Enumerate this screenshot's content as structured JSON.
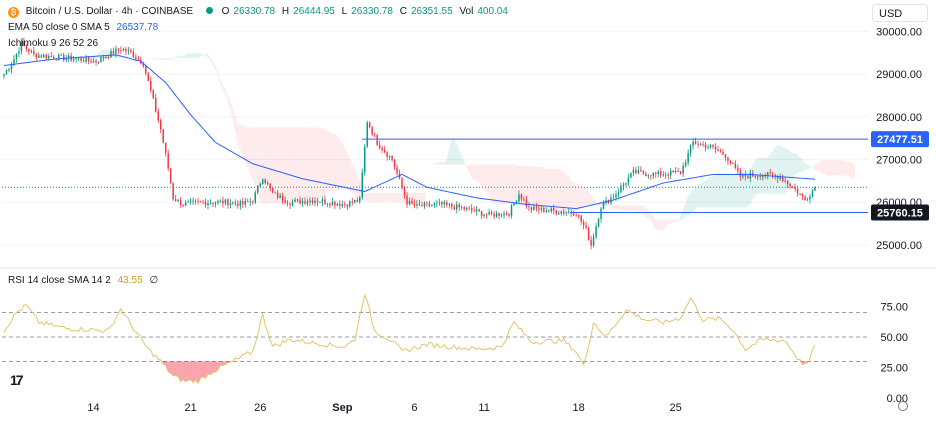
{
  "legend": {
    "symbol": "Bitcoin / U.S. Dollar · 4h · COINBASE",
    "o_label": "O",
    "o": "26330.78",
    "h_label": "H",
    "h": "26444.95",
    "l_label": "L",
    "l": "26330.78",
    "c_label": "C",
    "c": "26351.55",
    "vol_label": "Vol",
    "vol": "400.04",
    "ema_label": "EMA 50 close 0 SMA 5",
    "ema_value": "26537.78",
    "ichimoku_label": "Ichimoku 9 26 52 26",
    "rsi_label": "RSI 14 close SMA 14 2",
    "rsi_value": "43.55",
    "rsi_extra": "∅"
  },
  "currency": "USD",
  "colors": {
    "up": "#089981",
    "down": "#f23645",
    "ema": "#2962ff",
    "rsi": "#e2c56b",
    "level": "#2962ff"
  },
  "chart_data": [
    {
      "type": "candlestick",
      "title": "Bitcoin / U.S. Dollar · 4h · COINBASE",
      "ylim": [
        24600,
        30500
      ],
      "y_ticks": [
        "30000.00",
        "29000.00",
        "28000.00",
        "27000.00",
        "26000.00",
        "25000.00"
      ],
      "x_ticks": [
        "14",
        "21",
        "26",
        "Sep",
        "6",
        "11",
        "18",
        "25"
      ],
      "price_levels": [
        {
          "label": "27477.51",
          "value": 27477.51
        },
        {
          "label": "25760.15",
          "value": 25760.15
        }
      ],
      "series_anchors": [
        [
          0,
          29000
        ],
        [
          3,
          29250
        ],
        [
          7,
          29700
        ],
        [
          12,
          29450
        ],
        [
          20,
          29400
        ],
        [
          30,
          29350
        ],
        [
          37,
          29300
        ],
        [
          42,
          29450
        ],
        [
          47,
          29600
        ],
        [
          51,
          29500
        ],
        [
          56,
          29250
        ],
        [
          59,
          28600
        ],
        [
          63,
          27700
        ],
        [
          66,
          26800
        ],
        [
          68,
          26100
        ],
        [
          72,
          25950
        ],
        [
          80,
          26000
        ],
        [
          90,
          26000
        ],
        [
          96,
          25950
        ],
        [
          100,
          26050
        ],
        [
          104,
          26600
        ],
        [
          108,
          26200
        ],
        [
          115,
          26000
        ],
        [
          125,
          26050
        ],
        [
          137,
          25950
        ],
        [
          143,
          26050
        ],
        [
          146,
          27900
        ],
        [
          150,
          27400
        ],
        [
          156,
          27000
        ],
        [
          159,
          26500
        ],
        [
          162,
          26000
        ],
        [
          166,
          25900
        ],
        [
          175,
          25950
        ],
        [
          185,
          25850
        ],
        [
          195,
          25700
        ],
        [
          203,
          25750
        ],
        [
          207,
          26200
        ],
        [
          211,
          25850
        ],
        [
          220,
          25800
        ],
        [
          230,
          25750
        ],
        [
          234,
          25350
        ],
        [
          236,
          25000
        ],
        [
          240,
          25900
        ],
        [
          246,
          26200
        ],
        [
          253,
          26700
        ],
        [
          262,
          26650
        ],
        [
          272,
          26700
        ],
        [
          277,
          27400
        ],
        [
          284,
          27300
        ],
        [
          290,
          27100
        ],
        [
          296,
          26600
        ],
        [
          304,
          26650
        ],
        [
          312,
          26600
        ],
        [
          318,
          26300
        ],
        [
          322,
          26050
        ],
        [
          326,
          26351.55
        ]
      ],
      "ema_anchors": [
        [
          0,
          29200
        ],
        [
          20,
          29350
        ],
        [
          45,
          29450
        ],
        [
          55,
          29300
        ],
        [
          65,
          28800
        ],
        [
          75,
          28050
        ],
        [
          85,
          27400
        ],
        [
          100,
          26900
        ],
        [
          120,
          26550
        ],
        [
          145,
          26250
        ],
        [
          160,
          26650
        ],
        [
          170,
          26350
        ],
        [
          190,
          26100
        ],
        [
          210,
          25950
        ],
        [
          230,
          25850
        ],
        [
          245,
          26050
        ],
        [
          265,
          26450
        ],
        [
          285,
          26650
        ],
        [
          300,
          26650
        ],
        [
          326,
          26537.78
        ]
      ],
      "rsi": {
        "ylim": [
          0,
          100
        ],
        "y_ticks": [
          "75.00",
          "50.00",
          "25.00",
          "0.00"
        ],
        "levels": [
          70,
          50,
          30
        ],
        "value": 43.55,
        "anchors": [
          [
            0,
            55
          ],
          [
            5,
            70
          ],
          [
            9,
            76
          ],
          [
            14,
            62
          ],
          [
            25,
            57
          ],
          [
            35,
            56
          ],
          [
            42,
            55
          ],
          [
            47,
            73
          ],
          [
            52,
            57
          ],
          [
            58,
            40
          ],
          [
            63,
            30
          ],
          [
            68,
            18
          ],
          [
            72,
            14
          ],
          [
            78,
            14
          ],
          [
            84,
            22
          ],
          [
            92,
            30
          ],
          [
            100,
            38
          ],
          [
            104,
            68
          ],
          [
            108,
            42
          ],
          [
            115,
            48
          ],
          [
            125,
            45
          ],
          [
            137,
            42
          ],
          [
            141,
            48
          ],
          [
            145,
            86
          ],
          [
            149,
            55
          ],
          [
            156,
            47
          ],
          [
            160,
            38
          ],
          [
            170,
            44
          ],
          [
            180,
            42
          ],
          [
            190,
            40
          ],
          [
            200,
            42
          ],
          [
            205,
            62
          ],
          [
            212,
            46
          ],
          [
            225,
            47
          ],
          [
            230,
            38
          ],
          [
            233,
            26
          ],
          [
            237,
            62
          ],
          [
            242,
            50
          ],
          [
            250,
            72
          ],
          [
            258,
            64
          ],
          [
            266,
            62
          ],
          [
            272,
            66
          ],
          [
            276,
            82
          ],
          [
            281,
            64
          ],
          [
            288,
            65
          ],
          [
            293,
            56
          ],
          [
            298,
            40
          ],
          [
            305,
            48
          ],
          [
            314,
            47
          ],
          [
            320,
            30
          ],
          [
            323,
            27
          ],
          [
            326,
            43.55
          ]
        ]
      }
    }
  ]
}
